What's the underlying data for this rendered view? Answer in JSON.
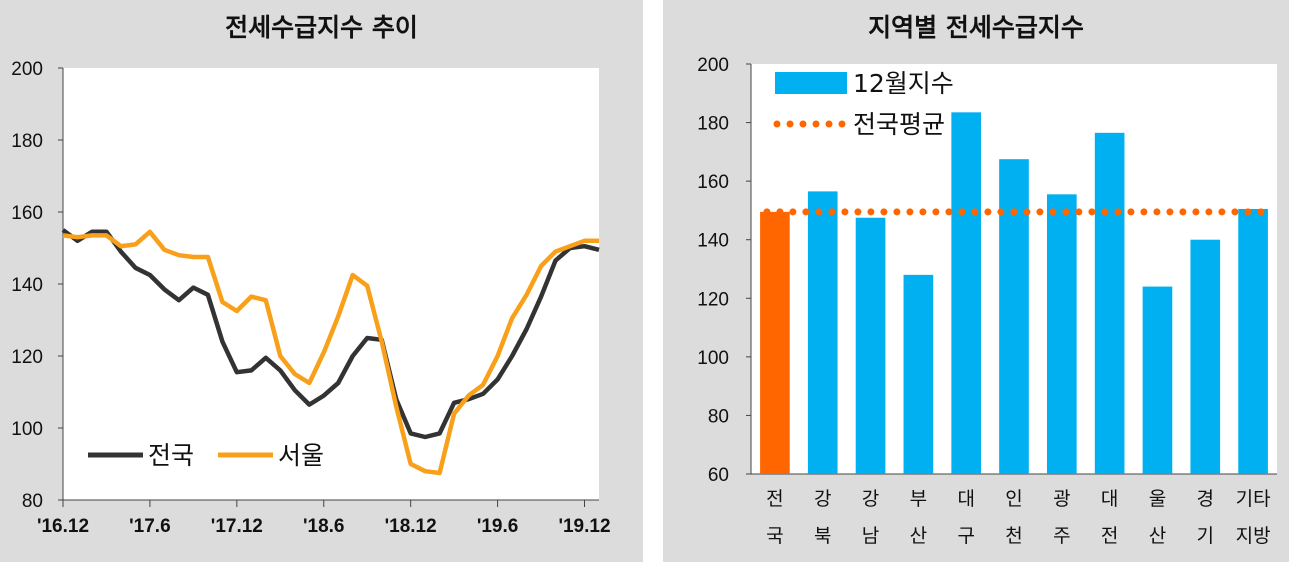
{
  "chart_data": [
    {
      "type": "line",
      "title": "전세수급지수 추이",
      "ylim": [
        80,
        200
      ],
      "yticks": [
        "80",
        "100",
        "120",
        "140",
        "160",
        "180",
        "200"
      ],
      "xtick_labels": [
        "'16.12",
        "'17.6",
        "'17.12",
        "'18.6",
        "'18.12",
        "'19.6",
        "'19.12"
      ],
      "legend_position": "bottom-left",
      "grid": false,
      "series": [
        {
          "name": "전국",
          "color": "#333333",
          "values": [
            155,
            152,
            154.5,
            154.5,
            149,
            144.5,
            142.5,
            138.5,
            135.5,
            139,
            137,
            124,
            115.5,
            116,
            119.5,
            116,
            110.5,
            106.5,
            109,
            112.5,
            120,
            125,
            124.5,
            108,
            98.5,
            97.5,
            98.5,
            107,
            108,
            109.5,
            113.5,
            120,
            127.5,
            136.5,
            146.5,
            150,
            150.5,
            149.5
          ]
        },
        {
          "name": "서울",
          "color": "#f9a01b",
          "values": [
            153.5,
            153,
            153.5,
            153.5,
            150.5,
            151,
            154.5,
            149.5,
            148,
            147.5,
            147.5,
            135,
            132.5,
            136.5,
            135.5,
            120,
            115,
            112.5,
            121,
            131,
            142.5,
            139.5,
            124,
            106,
            90,
            88,
            87.5,
            104,
            109,
            112,
            120,
            130.5,
            137,
            145,
            149,
            150.5,
            152,
            152
          ]
        }
      ]
    },
    {
      "type": "bar",
      "title": "지역별 전세수급지수",
      "ylim": [
        60,
        200
      ],
      "yticks": [
        "60",
        "80",
        "100",
        "120",
        "140",
        "160",
        "180",
        "200"
      ],
      "categories": [
        [
          "전",
          "국"
        ],
        [
          "강",
          "북"
        ],
        [
          "강",
          "남"
        ],
        [
          "부",
          "산"
        ],
        [
          "대",
          "구"
        ],
        [
          "인",
          "천"
        ],
        [
          "광",
          "주"
        ],
        [
          "대",
          "전"
        ],
        [
          "울",
          "산"
        ],
        [
          "경",
          "기"
        ],
        [
          "기타",
          "지방"
        ]
      ],
      "values": [
        149.5,
        156.5,
        147.5,
        128,
        183.5,
        167.5,
        155.5,
        176.5,
        124,
        140,
        150.5
      ],
      "bar_colors": [
        "#ff6600",
        "#00b0f0",
        "#00b0f0",
        "#00b0f0",
        "#00b0f0",
        "#00b0f0",
        "#00b0f0",
        "#00b0f0",
        "#00b0f0",
        "#00b0f0",
        "#00b0f0"
      ],
      "average": 149.5,
      "average_color": "#ff6600",
      "legend_position": "top-left",
      "grid": false,
      "series": [
        {
          "name": "12월지수",
          "color": "#00b0f0"
        },
        {
          "name": "전국평균",
          "color": "#ff6600"
        }
      ]
    }
  ]
}
